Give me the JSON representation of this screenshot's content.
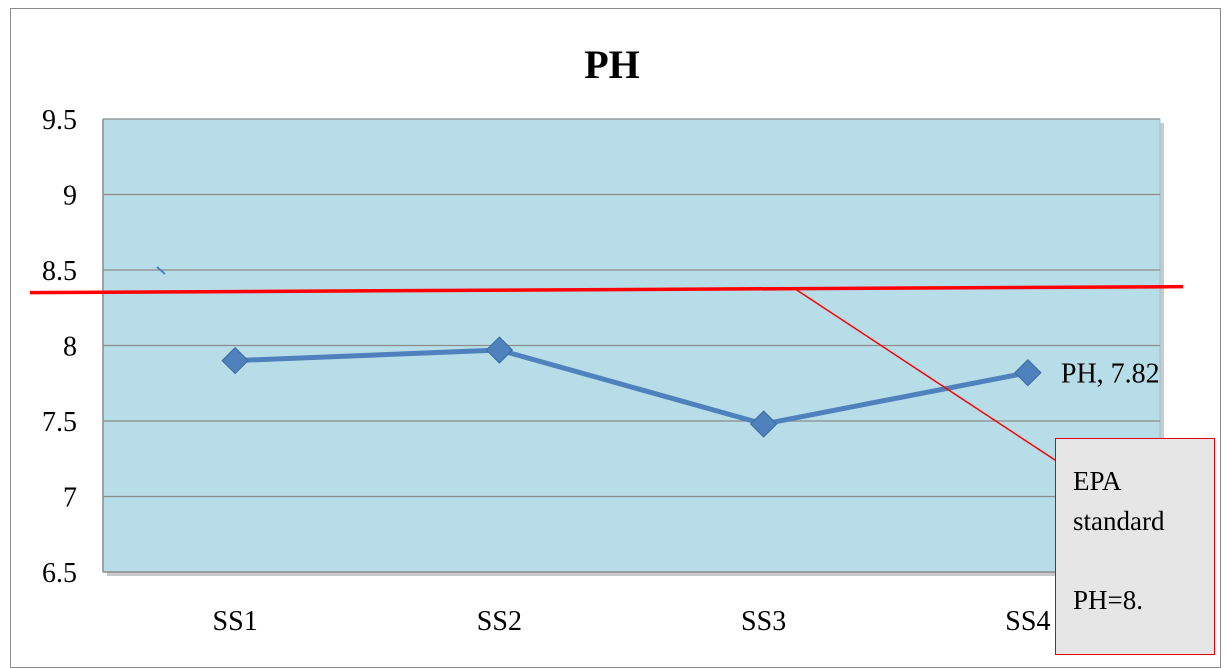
{
  "chart_data": {
    "type": "line",
    "title": "PH",
    "categories": [
      "SS1",
      "SS2",
      "SS3",
      "SS4"
    ],
    "series": [
      {
        "name": "PH",
        "values": [
          7.9,
          7.97,
          7.48,
          7.82
        ],
        "color": "#4f81bd"
      }
    ],
    "data_label": "PH, 7.82",
    "ylim": [
      6.5,
      9.5
    ],
    "yticks": [
      "6.5",
      "7",
      "7.5",
      "8",
      "8.5",
      "9",
      "9.5"
    ],
    "grid": true,
    "plot_background": "#b7dde8",
    "reference_line": {
      "value_left": 8.35,
      "value_right": 8.39,
      "color": "#ff0000"
    },
    "callout": {
      "line1": "EPA",
      "line2": "standard",
      "line3": "PH=8."
    }
  }
}
